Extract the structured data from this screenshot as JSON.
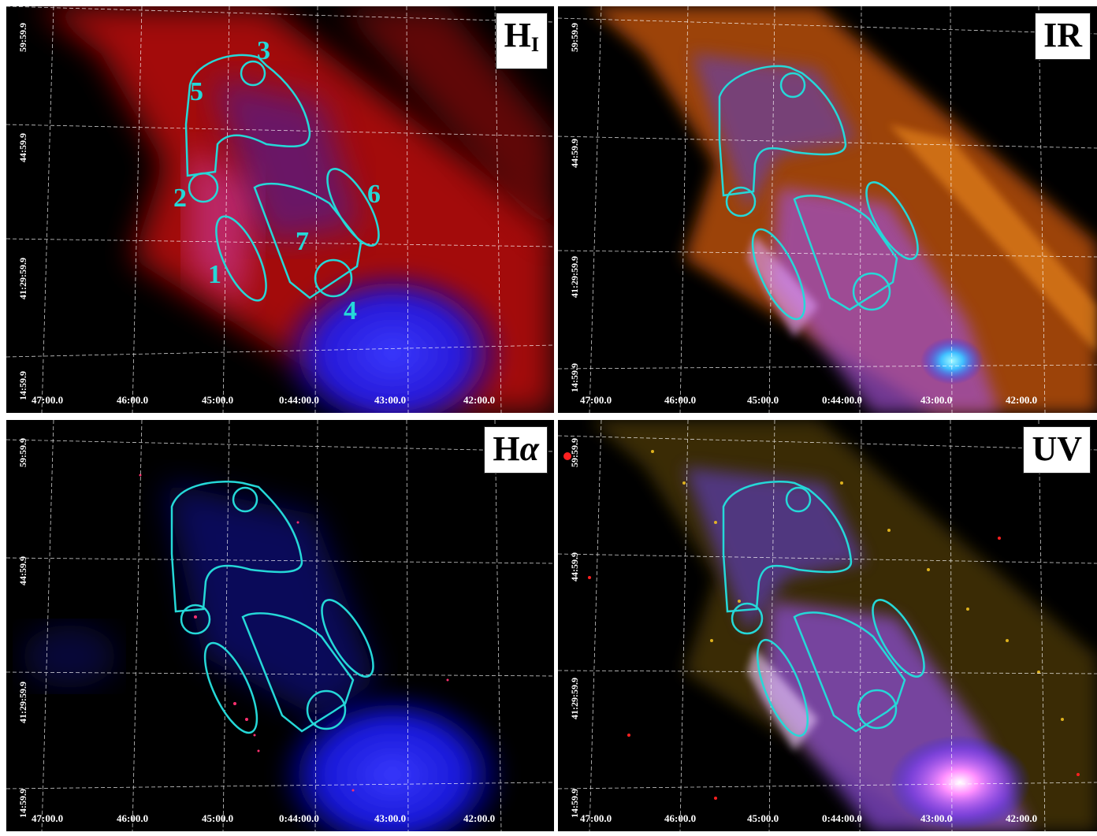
{
  "panels": {
    "hi": {
      "label_main": "H",
      "label_sub": "I"
    },
    "ir": {
      "label": "IR"
    },
    "ha": {
      "label_main": "H",
      "label_greek": "α"
    },
    "uv": {
      "label": "UV"
    }
  },
  "axes": {
    "x_ticks": [
      "47:00.0",
      "46:00.0",
      "45:00.0",
      "0:44:00.0",
      "43:00.0",
      "42:00.0"
    ],
    "y_ticks": [
      "59:59.9",
      "44:59.9",
      "41:29:59.9",
      "14:59.9"
    ]
  },
  "regions": {
    "r1": "1",
    "r2": "2",
    "r3": "3",
    "r4": "4",
    "r5": "5",
    "r6": "6",
    "r7": "7"
  },
  "colors": {
    "region_outline": "#25d8d8",
    "grid": "#ffffff",
    "hi_gas": "#d01010",
    "ir_dust": "#ff7a10",
    "uv_stars": "#e8c020",
    "galaxy_core": "#2020ff"
  }
}
